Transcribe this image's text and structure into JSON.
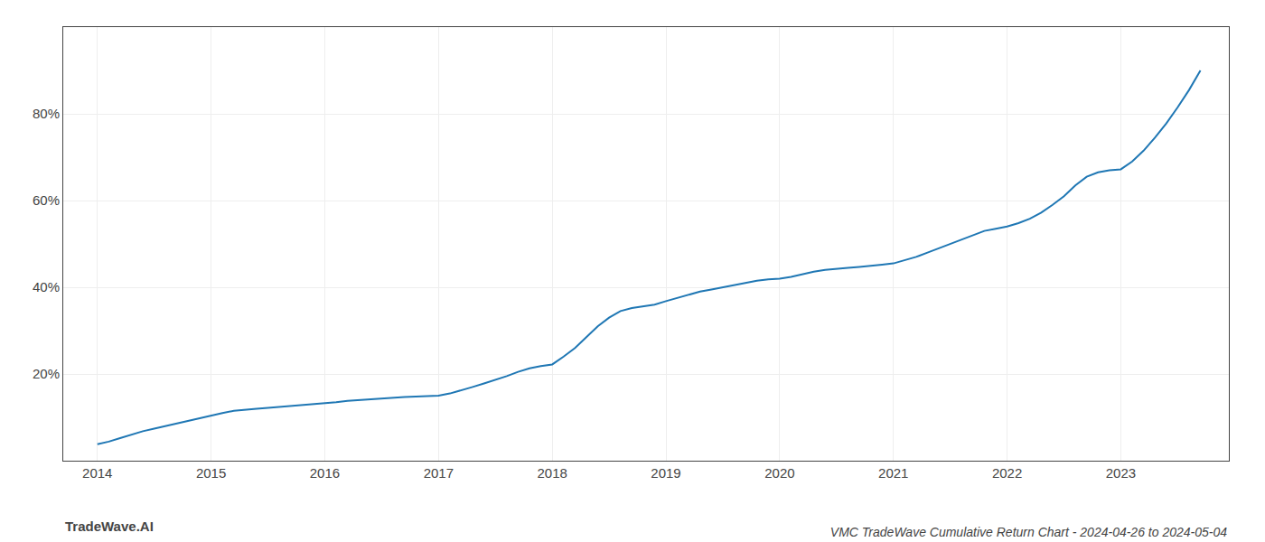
{
  "chart_data": {
    "type": "line",
    "title": "VMC TradeWave Cumulative Return Chart - 2024-04-26 to 2024-05-04",
    "annotations": [
      {
        "text": "TradeWave.AI"
      }
    ],
    "x": [
      2014.0,
      2014.1,
      2014.2,
      2014.3,
      2014.4,
      2014.5,
      2014.6,
      2014.7,
      2014.8,
      2014.9,
      2015.0,
      2015.1,
      2015.2,
      2015.3,
      2015.4,
      2015.5,
      2015.6,
      2015.7,
      2015.8,
      2015.9,
      2016.0,
      2016.1,
      2016.2,
      2016.3,
      2016.4,
      2016.5,
      2016.6,
      2016.7,
      2016.8,
      2016.9,
      2017.0,
      2017.1,
      2017.2,
      2017.3,
      2017.4,
      2017.5,
      2017.6,
      2017.7,
      2017.8,
      2017.9,
      2018.0,
      2018.1,
      2018.2,
      2018.3,
      2018.4,
      2018.5,
      2018.6,
      2018.7,
      2018.8,
      2018.9,
      2019.0,
      2019.1,
      2019.2,
      2019.3,
      2019.4,
      2019.5,
      2019.6,
      2019.7,
      2019.8,
      2019.9,
      2020.0,
      2020.1,
      2020.2,
      2020.3,
      2020.4,
      2020.5,
      2020.6,
      2020.7,
      2020.8,
      2020.9,
      2021.0,
      2021.1,
      2021.2,
      2021.3,
      2021.4,
      2021.5,
      2021.6,
      2021.7,
      2021.8,
      2021.9,
      2022.0,
      2022.1,
      2022.2,
      2022.3,
      2022.4,
      2022.5,
      2022.6,
      2022.7,
      2022.8,
      2022.9,
      2023.0,
      2023.1,
      2023.2,
      2023.3,
      2023.4,
      2023.5,
      2023.6,
      2023.7
    ],
    "values": [
      0.038,
      0.044,
      0.052,
      0.06,
      0.068,
      0.074,
      0.08,
      0.086,
      0.092,
      0.098,
      0.105,
      0.11,
      0.115,
      0.118,
      0.12,
      0.122,
      0.124,
      0.126,
      0.128,
      0.13,
      0.132,
      0.135,
      0.138,
      0.14,
      0.142,
      0.144,
      0.146,
      0.147,
      0.148,
      0.149,
      0.15,
      0.155,
      0.162,
      0.17,
      0.178,
      0.186,
      0.195,
      0.205,
      0.213,
      0.218,
      0.222,
      0.24,
      0.26,
      0.285,
      0.31,
      0.33,
      0.345,
      0.352,
      0.356,
      0.36,
      0.368,
      0.375,
      0.382,
      0.39,
      0.395,
      0.4,
      0.405,
      0.41,
      0.415,
      0.418,
      0.42,
      0.424,
      0.43,
      0.436,
      0.44,
      0.443,
      0.445,
      0.447,
      0.449,
      0.452,
      0.455,
      0.462,
      0.47,
      0.48,
      0.49,
      0.5,
      0.51,
      0.52,
      0.53,
      0.535,
      0.54,
      0.548,
      0.558,
      0.572,
      0.59,
      0.61,
      0.635,
      0.655,
      0.665,
      0.67,
      0.672,
      0.69,
      0.715,
      0.745,
      0.778,
      0.815,
      0.855,
      0.9
    ],
    "xlim": [
      2013.7,
      2023.95
    ],
    "xticks": [
      2014,
      2015,
      2016,
      2017,
      2018,
      2019,
      2020,
      2021,
      2022,
      2023
    ],
    "ylim": [
      0.0,
      1.0
    ],
    "yticks": [
      {
        "value": 0.2,
        "label": "20%"
      },
      {
        "value": 0.4,
        "label": "40%"
      },
      {
        "value": 0.6,
        "label": "60%"
      },
      {
        "value": 0.8,
        "label": "80%"
      }
    ],
    "grid": true
  }
}
